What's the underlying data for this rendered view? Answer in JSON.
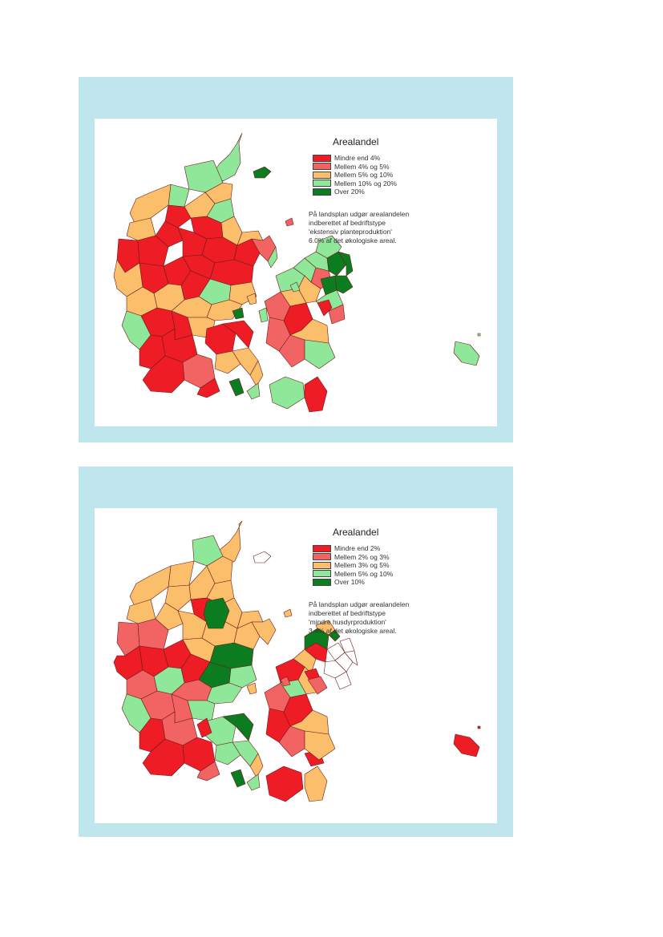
{
  "palette": {
    "panel_background": "#bfe6ec",
    "card_background": "#ffffff",
    "border": "#6a1a1a",
    "red": "#ee1c25",
    "light_red": "#f26464",
    "orange": "#fbbf6b",
    "light_green": "#8fe89a",
    "dark_green": "#0b7d20",
    "no_data": "#ffffff"
  },
  "maps": [
    {
      "legend_title": "Arealandel",
      "legend": [
        {
          "label": "Mindre end 4%",
          "color": "#ee1c25"
        },
        {
          "label": "Mellem 4% og 5%",
          "color": "#f26464"
        },
        {
          "label": "Mellem 5% og 10%",
          "color": "#fbbf6b"
        },
        {
          "label": "Mellem 10% og 20%",
          "color": "#8fe89a"
        },
        {
          "label": "Over 20%",
          "color": "#0b7d20"
        }
      ],
      "note": [
        "På landsplan udgør arealandelen",
        "indberettet af bedriftstype",
        "'ekstensiv planteproduktion'",
        "6.0% af det økologiske areal."
      ]
    },
    {
      "legend_title": "Arealandel",
      "legend": [
        {
          "label": "Mindre end 2%",
          "color": "#ee1c25"
        },
        {
          "label": "Mellem 2% og 3%",
          "color": "#f26464"
        },
        {
          "label": "Mellem 3% og 5%",
          "color": "#fbbf6b"
        },
        {
          "label": "Mellem 5% og 10%",
          "color": "#8fe89a"
        },
        {
          "label": "Over 10%",
          "color": "#0b7d20"
        }
      ],
      "note": [
        "På landsplan udgør arealandelen",
        "indberettet af bedriftstype",
        "'mindre husdyrproduktion'",
        "3.4% af det økologiske areal."
      ]
    }
  ]
}
